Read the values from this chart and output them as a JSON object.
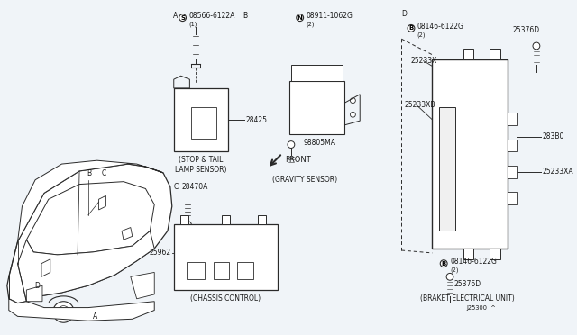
{
  "bg_color": "#f0f4f8",
  "line_color": "#2a2a2a",
  "text_color": "#1a1a1a",
  "fs_small": 5.5,
  "fs_tiny": 4.8,
  "fs_med": 6.0,
  "labels": {
    "stop_tail": "(STOP & TAIL\nLAMP SENSOR)",
    "gravity": "(GRAVITY SENSOR)",
    "chassis": "(CHASSIS CONTROL)",
    "bracket": "(BRAKET ELECTRICAL UNIT)",
    "front": "FRONT",
    "j25300": "J25300  ^",
    "part_A_screw": "08566-6122A",
    "part_A_qty": "(1)",
    "part_A_label": "A",
    "part_N_screw": "08911-1062G",
    "part_N_qty": "(2)",
    "part_B_label": "B",
    "part_D_label": "D",
    "part_C_label": "C",
    "p28425": "28425",
    "p98805ma": "98805MA",
    "p28470a": "28470A",
    "p25962": "25962",
    "p25233x": "25233X",
    "p25233xb": "25233XB",
    "p25233xa": "25233XA",
    "p283b0": "283B0",
    "p25376d_top": "25376D",
    "p25376d_bot": "25376D",
    "p08146_top": "08146-6122G",
    "p08146_top_qty": "(2)",
    "p08146_bot": "08146-6122G",
    "p08146_bot_qty": "(2)",
    "car_A": "A",
    "car_B": "B",
    "car_C": "C",
    "car_D": "D",
    "s_circle": "S",
    "n_circle": "N",
    "b_circle_top": "B",
    "b_circle_bot": "B"
  }
}
